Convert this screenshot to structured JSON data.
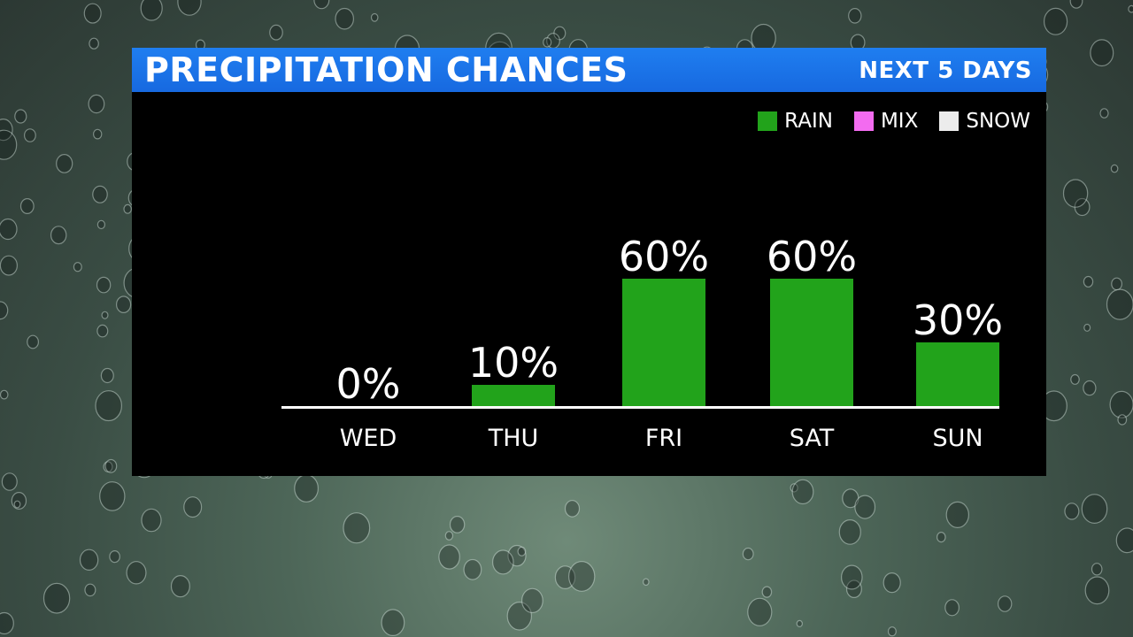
{
  "header": {
    "title": "PRECIPITATION CHANCES",
    "subtitle": "NEXT 5 DAYS"
  },
  "legend": [
    {
      "label": "RAIN",
      "color": "#22a31b"
    },
    {
      "label": "MIX",
      "color": "#f36bf0"
    },
    {
      "label": "SNOW",
      "color": "#ececec"
    }
  ],
  "chart_data": {
    "type": "bar",
    "categories": [
      "WED",
      "THU",
      "FRI",
      "SAT",
      "SUN"
    ],
    "values": [
      0,
      10,
      60,
      60,
      30
    ],
    "value_labels": [
      "0%",
      "10%",
      "60%",
      "60%",
      "30%"
    ],
    "series": [
      {
        "name": "RAIN",
        "values": [
          0,
          10,
          60,
          60,
          30
        ],
        "color": "#22a31b"
      }
    ],
    "title": "PRECIPITATION CHANCES",
    "subtitle": "NEXT 5 DAYS",
    "ylim": [
      0,
      100
    ],
    "grid": false,
    "legend_position": "top-right"
  }
}
